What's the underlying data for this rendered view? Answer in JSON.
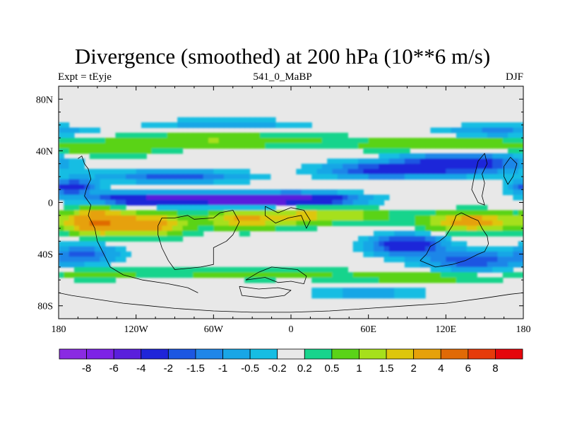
{
  "title": "Divergence (smoothed) at 200 hPa (10**6 m/s)",
  "left_label": "Expt = tEyje",
  "center_label": "541_0_MaBP",
  "right_label": "DJF",
  "chart_data": {
    "type": "heatmap",
    "projection": "cylindrical-equidistant",
    "variable": "divergence (smoothed)",
    "level": "200 hPa",
    "units": "10**6 m/s",
    "lon_range": [
      -180,
      180
    ],
    "lat_range": [
      -90,
      90
    ],
    "x_tick_labels": [
      "180",
      "120W",
      "60W",
      "0",
      "60E",
      "120E",
      "180"
    ],
    "x_tick_values": [
      -180,
      -120,
      -60,
      0,
      60,
      120,
      180
    ],
    "y_tick_labels": [
      "80N",
      "40N",
      "0",
      "40S",
      "80S"
    ],
    "y_tick_values": [
      80,
      40,
      0,
      -40,
      -80
    ],
    "colorbar": {
      "levels": [
        -8,
        -6,
        -4,
        -2,
        -1.5,
        -1,
        -0.5,
        -0.2,
        0.2,
        0.5,
        1,
        1.5,
        2,
        4,
        6,
        8
      ],
      "labels": [
        "-8",
        "-6",
        "-4",
        "-2",
        "-1.5",
        "-1",
        "-0.5",
        "-0.2",
        "0.2",
        "0.5",
        "1",
        "1.5",
        "2",
        "4",
        "6",
        "8"
      ],
      "colors": [
        "#8a2be2",
        "#7d22e6",
        "#5a1fdc",
        "#1f25d9",
        "#1c57e2",
        "#1f86e8",
        "#19a6e6",
        "#16bde3",
        "#e8e8e8",
        "#18d48c",
        "#5ad318",
        "#a6e01c",
        "#dec60c",
        "#e6a10a",
        "#e06a06",
        "#e63b0a",
        "#e5060c"
      ]
    },
    "features": [
      {
        "name": "equatorial convergence band",
        "lon": [
          -130,
          40
        ],
        "lat": [
          0,
          6
        ],
        "value": -5
      },
      {
        "name": "subtropical divergence belt west",
        "lon": [
          -180,
          -30
        ],
        "lat": [
          -25,
          -5
        ],
        "value": 3
      },
      {
        "name": "subtropical divergence belt central",
        "lon": [
          -40,
          20
        ],
        "lat": [
          -18,
          -5
        ],
        "value": 3
      },
      {
        "name": "midlatitude convergence band east",
        "lon": [
          100,
          170
        ],
        "lat": [
          25,
          40
        ],
        "value": -3
      },
      {
        "name": "southern convergence center",
        "lon": [
          70,
          110
        ],
        "lat": [
          -40,
          -28
        ],
        "value": -3
      },
      {
        "name": "northern divergence band",
        "lon": [
          -170,
          180
        ],
        "lat": [
          40,
          55
        ],
        "value": 1
      },
      {
        "name": "southern divergence band",
        "lon": [
          -170,
          180
        ],
        "lat": [
          -60,
          -50
        ],
        "value": 1
      }
    ]
  }
}
